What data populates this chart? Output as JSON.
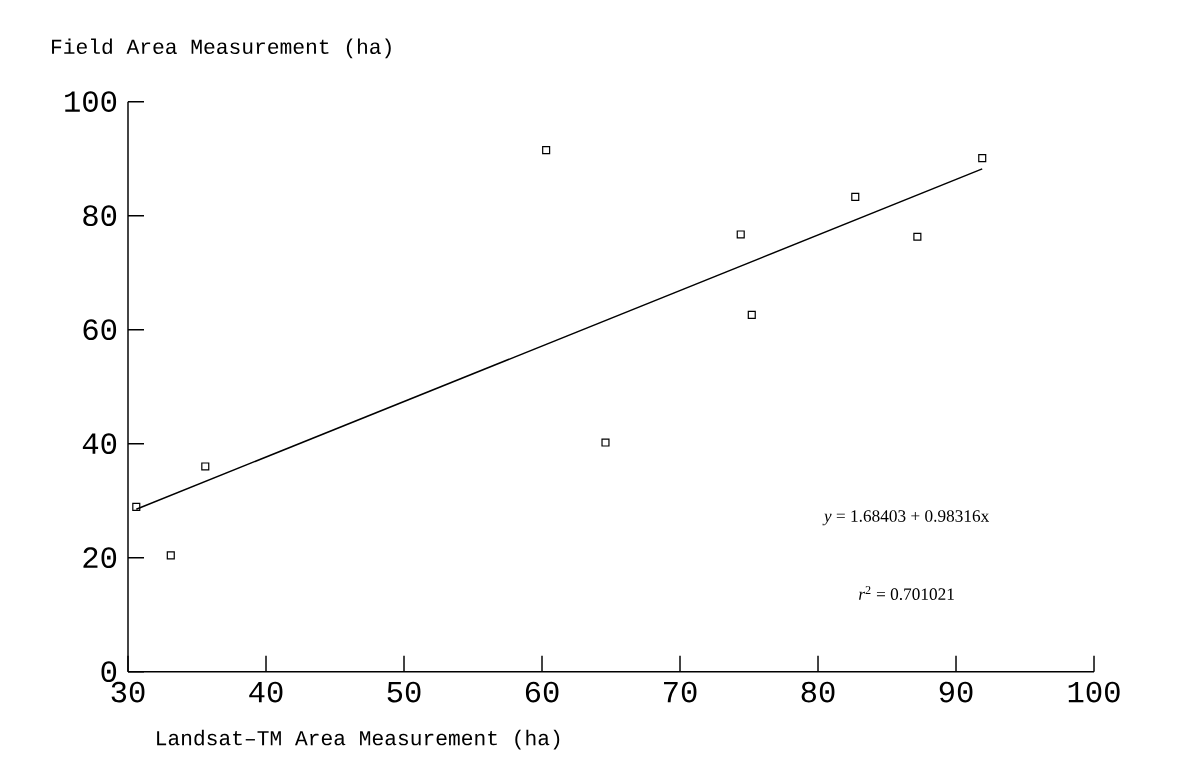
{
  "chart_data": {
    "type": "scatter",
    "xlabel": "Landsat–TM Area Measurement (ha)",
    "ylabel": "Field Area Measurement (ha)",
    "series": [
      {
        "type": "scatter",
        "color": "#000000",
        "x": [
          30.6,
          33.1,
          35.6,
          60.3,
          64.6,
          74.4,
          75.2,
          82.7,
          87.2,
          91.9
        ],
        "values": [
          28.9,
          20.4,
          36.0,
          91.5,
          40.2,
          76.7,
          62.6,
          83.3,
          76.3,
          90.1
        ]
      },
      {
        "type": "line",
        "color": "#000000",
        "marker": "none",
        "x": [
          30.6,
          91.9
        ],
        "values": [
          28.5,
          88.2
        ]
      }
    ],
    "marker": "square",
    "line_style": "solid",
    "xlim": [
      30,
      100
    ],
    "ylim": [
      0,
      100
    ],
    "xticks": [
      30,
      40,
      50,
      60,
      70,
      80,
      90,
      100
    ],
    "yticks": [
      0,
      20,
      40,
      60,
      80,
      100
    ],
    "annotations": [
      "*y* = 1.68403 + 0.98316x",
      "*r*$^{2}$ = 0.701021"
    ]
  }
}
